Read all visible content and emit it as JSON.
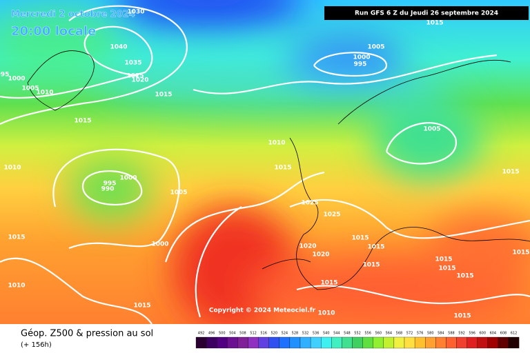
{
  "header": {
    "date": "Mercredi 2 octobre 2024",
    "time": "20:00 locale",
    "run": "Run GFS 6 Z du Jeudi 26 septembre 2024",
    "copyright": "Copyright © 2024 Meteociel.fr"
  },
  "footer": {
    "title": "Géop. Z500 & pression au sol",
    "lead": "(+ 156h)"
  },
  "isobar_labels": [
    "1030",
    "1040",
    "1035",
    "1025",
    "1020",
    "1015",
    "995",
    "1000",
    "1005",
    "1010",
    "1015",
    "1010",
    "1015",
    "1010",
    "1015",
    "1000",
    "995",
    "990",
    "1005",
    "1000",
    "1005",
    "1000",
    "995",
    "1015",
    "1010",
    "1015",
    "1005",
    "1015",
    "1025",
    "1025",
    "1015",
    "1015",
    "1020",
    "1020",
    "1015",
    "1015",
    "1015",
    "1015",
    "1015",
    "1015",
    "1015",
    "1010"
  ],
  "scale": {
    "values": [
      "492",
      "496",
      "500",
      "504",
      "508",
      "512",
      "516",
      "520",
      "524",
      "528",
      "532",
      "536",
      "540",
      "544",
      "548",
      "552",
      "556",
      "560",
      "564",
      "568",
      "572",
      "576",
      "580",
      "584",
      "588",
      "592",
      "596",
      "600",
      "604",
      "608",
      "612"
    ],
    "colors": [
      "#2a0030",
      "#3c0060",
      "#500080",
      "#6a1090",
      "#802098",
      "#9030c0",
      "#6040e0",
      "#3050f0",
      "#2070ff",
      "#2090ff",
      "#30b0ff",
      "#40d0ff",
      "#40f0f0",
      "#40f0c0",
      "#40e090",
      "#40d060",
      "#60e040",
      "#90f030",
      "#c0f030",
      "#f0f040",
      "#ffe040",
      "#ffc030",
      "#ffa030",
      "#ff8030",
      "#ff6030",
      "#f04030",
      "#e02020",
      "#c01010",
      "#a00000",
      "#600000",
      "#200000"
    ]
  }
}
